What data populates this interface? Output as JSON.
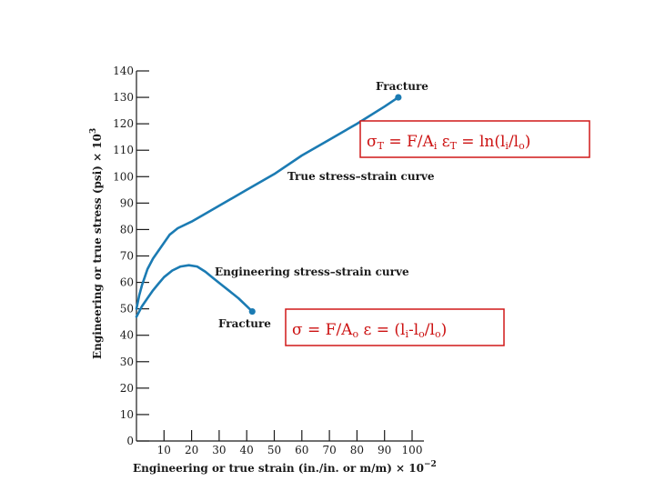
{
  "chart_data": {
    "type": "line",
    "xlabel": "Engineering or true strain (in./in. or m/m) × 10",
    "xlabel_exp": "−2",
    "ylabel": "Engineering or true stress (psi) × 10",
    "ylabel_exp": "3",
    "xlim": [
      0,
      100
    ],
    "ylim": [
      0,
      140
    ],
    "x_ticks": [
      10,
      20,
      30,
      40,
      50,
      60,
      70,
      80,
      90,
      100
    ],
    "y_ticks": [
      0,
      10,
      20,
      30,
      40,
      50,
      60,
      70,
      80,
      90,
      100,
      110,
      120,
      130,
      140
    ],
    "grid": false,
    "series": [
      {
        "name": "True stress–strain curve",
        "color": "#1b7bb3",
        "x": [
          0,
          1,
          2,
          3,
          4,
          6,
          8,
          10,
          12,
          15,
          20,
          25,
          30,
          40,
          50,
          60,
          70,
          80,
          90,
          95
        ],
        "y": [
          50,
          55,
          59,
          62,
          65,
          69,
          72,
          75,
          78,
          80.5,
          83,
          86,
          89,
          95,
          101,
          108,
          114,
          120,
          126.5,
          130
        ]
      },
      {
        "name": "Engineering stress–strain curve",
        "color": "#1b7bb3",
        "x": [
          0,
          2,
          4,
          6,
          8,
          10,
          13,
          16,
          19,
          22,
          25,
          28,
          31,
          34,
          37,
          40,
          42
        ],
        "y": [
          47,
          51,
          54,
          57,
          59.5,
          62,
          64.5,
          66,
          66.5,
          66,
          64,
          61.5,
          59,
          56.5,
          54,
          51,
          49
        ]
      }
    ],
    "annotations": {
      "fracture_true": "Fracture",
      "fracture_eng": "Fracture",
      "true_curve_label": "True stress–strain curve",
      "eng_curve_label": "Engineering stress–strain curve"
    },
    "equations": {
      "true": "σT = F/Ai  εT = ln(li/lo)",
      "engineering": "σ = F/Ao  ε = (li-lo/lo)"
    }
  }
}
